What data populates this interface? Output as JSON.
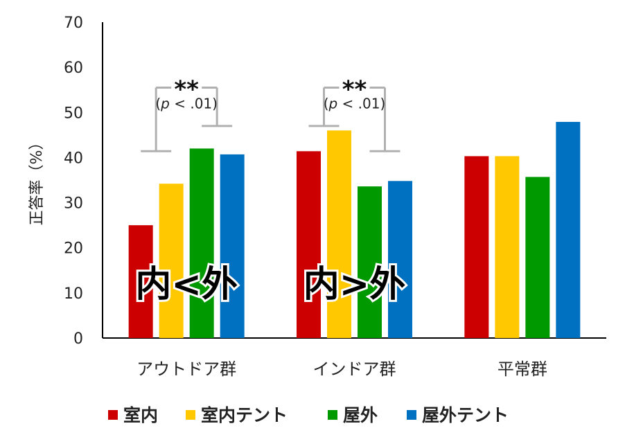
{
  "chart_data": {
    "type": "bar",
    "ylabel": "正答率（%）",
    "ylim": [
      0,
      70
    ],
    "yticks": [
      0,
      10,
      20,
      30,
      40,
      50,
      60,
      70
    ],
    "categories": [
      "アウトドア群",
      "インドア群",
      "平常群"
    ],
    "series": [
      {
        "name": "室内",
        "color": "#cc0000",
        "values": [
          25,
          41.4,
          40.3
        ]
      },
      {
        "name": "室内テント",
        "color": "#ffc800",
        "values": [
          34.2,
          46,
          40.3
        ]
      },
      {
        "name": "屋外",
        "color": "#009900",
        "values": [
          42,
          33.6,
          35.7
        ]
      },
      {
        "name": "屋外テント",
        "color": "#0070c0",
        "values": [
          40.7,
          34.8,
          47.9
        ]
      }
    ],
    "legend_position": "bottom",
    "grid": false,
    "annotations": [
      {
        "category": 0,
        "stars": "**",
        "pvalue_label": "p",
        "pvalue_rest": " < .01",
        "pvalue_open": "(",
        "pvalue_close": ")",
        "text": "内<外"
      },
      {
        "category": 1,
        "stars": "**",
        "pvalue_label": "p",
        "pvalue_rest": " < .01",
        "pvalue_open": "(",
        "pvalue_close": ")",
        "text": "内>外"
      }
    ]
  }
}
